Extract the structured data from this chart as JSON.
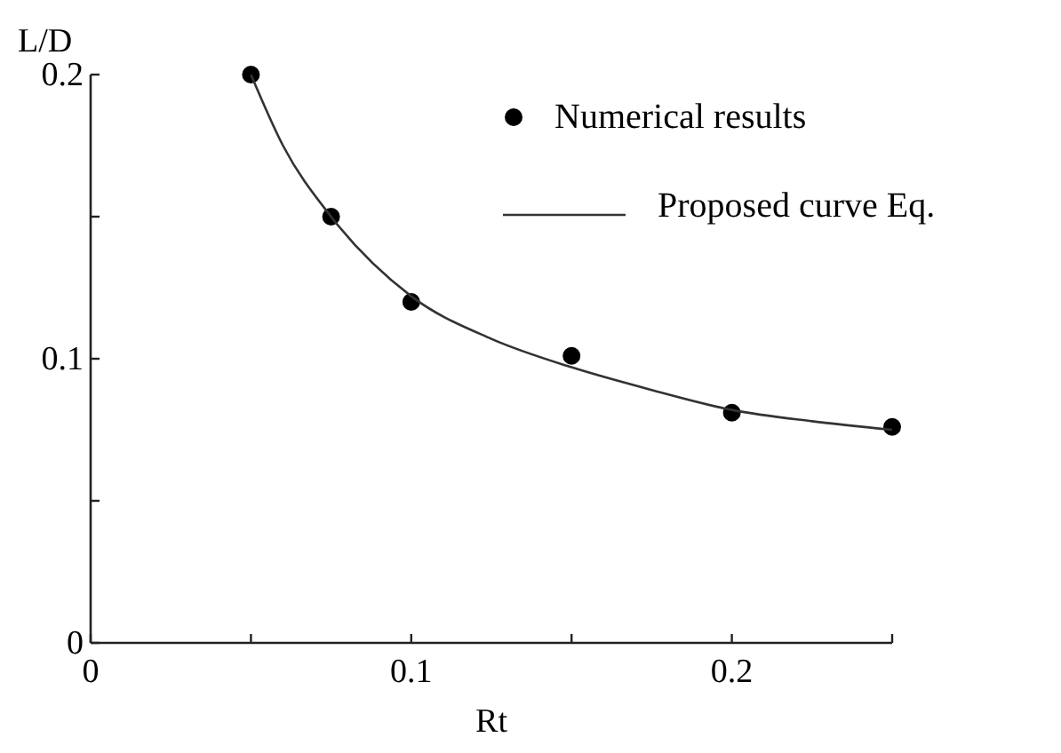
{
  "chart_data": {
    "type": "scatter",
    "xlabel": "Rt",
    "ylabel": "L/D",
    "xlim": [
      0,
      0.25
    ],
    "ylim": [
      0,
      0.2
    ],
    "xticks": [
      0,
      {
        "value": 0.05,
        "label": null
      },
      0.1,
      {
        "value": 0.15,
        "label": null
      },
      0.2,
      {
        "value": 0.25,
        "label": null
      }
    ],
    "yticks": [
      0,
      {
        "value": 0.05,
        "label": null
      },
      0.1,
      {
        "value": 0.15,
        "label": null
      },
      0.2
    ],
    "grid": false,
    "legend": "top right",
    "series": [
      {
        "name": "Numerical results",
        "marker": "circle",
        "color": "#000000",
        "x": [
          0.05,
          0.075,
          0.1,
          0.15,
          0.2,
          0.25
        ],
        "values": [
          0.2,
          0.15,
          0.12,
          0.101,
          0.081,
          0.076
        ]
      },
      {
        "name": "Proposed curve Eq.",
        "type": "line",
        "marker": "none",
        "line_style": "solid",
        "color": "#333333",
        "x": [
          0.05,
          0.06,
          0.075,
          0.1,
          0.125,
          0.15,
          0.175,
          0.2,
          0.225,
          0.25
        ],
        "values": [
          0.2,
          0.175,
          0.15,
          0.122,
          0.107,
          0.097,
          0.089,
          0.082,
          0.078,
          0.075
        ]
      }
    ]
  }
}
